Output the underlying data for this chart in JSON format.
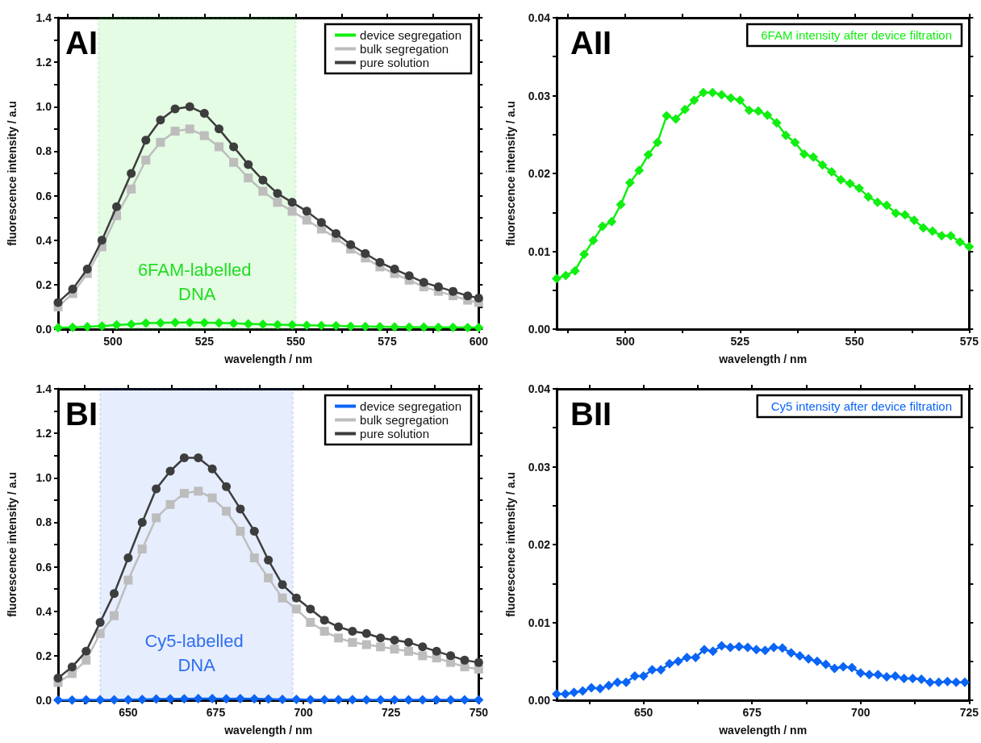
{
  "chart_data": [
    {
      "type": "line",
      "title": "AI",
      "xlabel": "wavelength / nm",
      "ylabel": "fluorescence intensity / a.u",
      "grid": false,
      "legend": "top right",
      "xlim": [
        485,
        600
      ],
      "xticks": [
        {
          "value": 487.5,
          "label": null
        },
        500,
        {
          "value": 512.5,
          "label": null
        },
        525,
        {
          "value": 537.5,
          "label": null
        },
        550,
        {
          "value": 562.5,
          "label": null
        },
        575,
        {
          "value": 587.5,
          "label": null
        },
        600
      ],
      "ylim": [
        0,
        1.4
      ],
      "yticks": [
        {
          "value": 0,
          "label": "0.0"
        },
        {
          "value": 0.1,
          "label": null
        },
        0.2,
        {
          "value": 0.3,
          "label": null
        },
        0.4,
        {
          "value": 0.5,
          "label": null
        },
        0.6,
        {
          "value": 0.7,
          "label": null
        },
        0.8,
        {
          "value": 0.9,
          "label": null
        },
        {
          "value": 1,
          "label": "1.0"
        },
        {
          "value": 1.1,
          "label": null
        },
        1.2,
        {
          "value": 1.3,
          "label": null
        },
        1.4
      ],
      "bands": [
        {
          "axis": "x",
          "from": 496,
          "to": 550,
          "label": "6FAM-labelled DNA",
          "color": "#22dd22"
        }
      ],
      "series": [
        {
          "name": "device segregation",
          "color": "#11ee11",
          "marker": "diamond",
          "x": [
            485,
            489,
            493,
            497,
            501,
            505,
            509,
            513,
            517,
            521,
            525,
            529,
            533,
            537,
            541,
            545,
            549,
            553,
            557,
            561,
            565,
            569,
            573,
            577,
            581,
            585,
            589,
            593,
            597,
            600
          ],
          "values": [
            0.006,
            0.008,
            0.011,
            0.014,
            0.019,
            0.022,
            0.027,
            0.028,
            0.03,
            0.03,
            0.029,
            0.028,
            0.026,
            0.024,
            0.022,
            0.02,
            0.019,
            0.017,
            0.016,
            0.015,
            0.013,
            0.012,
            0.011,
            0.01,
            0.009,
            0.009,
            0.008,
            0.008,
            0.007,
            0.007
          ]
        },
        {
          "name": "bulk segregation",
          "color": "#bdbdbd",
          "marker": "square",
          "x": [
            485,
            489,
            493,
            497,
            501,
            505,
            509,
            513,
            517,
            521,
            525,
            529,
            533,
            537,
            541,
            545,
            549,
            553,
            557,
            561,
            565,
            569,
            573,
            577,
            581,
            585,
            589,
            593,
            597,
            600
          ],
          "values": [
            0.1,
            0.16,
            0.25,
            0.37,
            0.51,
            0.63,
            0.76,
            0.84,
            0.89,
            0.9,
            0.87,
            0.82,
            0.75,
            0.68,
            0.62,
            0.57,
            0.53,
            0.49,
            0.45,
            0.41,
            0.36,
            0.32,
            0.28,
            0.25,
            0.22,
            0.19,
            0.17,
            0.15,
            0.13,
            0.12
          ]
        },
        {
          "name": "pure solution",
          "color": "#3d3d3d",
          "marker": "circle",
          "x": [
            485,
            489,
            493,
            497,
            501,
            505,
            509,
            513,
            517,
            521,
            525,
            529,
            533,
            537,
            541,
            545,
            549,
            553,
            557,
            561,
            565,
            569,
            573,
            577,
            581,
            585,
            589,
            593,
            597,
            600
          ],
          "values": [
            0.12,
            0.18,
            0.27,
            0.4,
            0.55,
            0.7,
            0.85,
            0.94,
            0.99,
            1.0,
            0.97,
            0.9,
            0.82,
            0.74,
            0.67,
            0.61,
            0.57,
            0.53,
            0.48,
            0.43,
            0.38,
            0.34,
            0.3,
            0.27,
            0.24,
            0.21,
            0.19,
            0.17,
            0.15,
            0.14
          ]
        }
      ]
    },
    {
      "type": "line",
      "title": "AII",
      "xlabel": "wavelength / nm",
      "ylabel": "fluorescence intensity / a.u",
      "grid": false,
      "legend": "top right",
      "xlim": [
        485,
        575
      ],
      "xticks": [
        {
          "value": 487.5,
          "label": null
        },
        500,
        {
          "value": 512.5,
          "label": null
        },
        525,
        {
          "value": 537.5,
          "label": null
        },
        550,
        {
          "value": 562.5,
          "label": null
        },
        575
      ],
      "ylim": [
        0,
        0.04
      ],
      "yticks": [
        {
          "value": 0,
          "label": "0.00"
        },
        {
          "value": 0.005,
          "label": null
        },
        0.01,
        {
          "value": 0.015,
          "label": null
        },
        0.02,
        {
          "value": 0.025,
          "label": null
        },
        0.03,
        {
          "value": 0.035,
          "label": null
        },
        0.04
      ],
      "series": [
        {
          "name": "6FAM intensity after device filtration",
          "color": "#11ee11",
          "marker": "diamond",
          "x": [
            485,
            487,
            489,
            491,
            493,
            495,
            497,
            499,
            501,
            503,
            505,
            507,
            509,
            511,
            513,
            515,
            517,
            519,
            521,
            523,
            525,
            527,
            529,
            531,
            533,
            535,
            537,
            539,
            541,
            543,
            545,
            547,
            549,
            551,
            553,
            555,
            557,
            559,
            561,
            563,
            565,
            567,
            569,
            571,
            573,
            575
          ],
          "values": [
            0.0065,
            0.0069,
            0.0075,
            0.0096,
            0.0114,
            0.0132,
            0.0138,
            0.016,
            0.0188,
            0.0204,
            0.0224,
            0.024,
            0.0274,
            0.027,
            0.0282,
            0.0294,
            0.0304,
            0.0304,
            0.0301,
            0.0297,
            0.0294,
            0.0281,
            0.028,
            0.0275,
            0.0265,
            0.0249,
            0.024,
            0.0225,
            0.0221,
            0.0211,
            0.0202,
            0.0192,
            0.0187,
            0.0181,
            0.017,
            0.0163,
            0.0159,
            0.0149,
            0.0147,
            0.014,
            0.013,
            0.0126,
            0.012,
            0.012,
            0.0112,
            0.0106
          ]
        }
      ]
    },
    {
      "type": "line",
      "title": "BI",
      "xlabel": "wavelength / nm",
      "ylabel": "fluorescence intensity / a.u",
      "grid": false,
      "legend": "top right",
      "xlim": [
        630,
        750
      ],
      "xticks": [
        {
          "value": 637.5,
          "label": null
        },
        650,
        {
          "value": 662.5,
          "label": null
        },
        675,
        {
          "value": 687.5,
          "label": null
        },
        700,
        {
          "value": 712.5,
          "label": null
        },
        725,
        {
          "value": 737.5,
          "label": null
        },
        750
      ],
      "ylim": [
        0,
        1.4
      ],
      "yticks": [
        {
          "value": 0,
          "label": "0.0"
        },
        {
          "value": 0.1,
          "label": null
        },
        0.2,
        {
          "value": 0.3,
          "label": null
        },
        0.4,
        {
          "value": 0.5,
          "label": null
        },
        0.6,
        {
          "value": 0.7,
          "label": null
        },
        0.8,
        {
          "value": 0.9,
          "label": null
        },
        {
          "value": 1,
          "label": "1.0"
        },
        {
          "value": 1.1,
          "label": null
        },
        1.2,
        {
          "value": 1.3,
          "label": null
        },
        1.4
      ],
      "bands": [
        {
          "axis": "x",
          "from": 642,
          "to": 697,
          "label": "Cy5-labelled DNA",
          "color": "#2f6ff0"
        }
      ],
      "series": [
        {
          "name": "device segregation",
          "color": "#0a64f5",
          "marker": "diamond",
          "x": [
            630,
            634,
            638,
            642,
            646,
            650,
            654,
            658,
            662,
            666,
            670,
            674,
            678,
            682,
            686,
            690,
            694,
            698,
            702,
            706,
            710,
            714,
            718,
            722,
            726,
            730,
            734,
            738,
            742,
            746,
            750
          ],
          "values": [
            0.001,
            0.001,
            0.002,
            0.002,
            0.002,
            0.003,
            0.004,
            0.005,
            0.006,
            0.006,
            0.007,
            0.007,
            0.006,
            0.007,
            0.006,
            0.005,
            0.004,
            0.004,
            0.003,
            0.003,
            0.003,
            0.003,
            0.002,
            0.002,
            0.002,
            0.002,
            0.002,
            0.002,
            0.002,
            0.002,
            0.002
          ]
        },
        {
          "name": "bulk segregation",
          "color": "#bdbdbd",
          "marker": "square",
          "x": [
            630,
            634,
            638,
            642,
            646,
            650,
            654,
            658,
            662,
            666,
            670,
            674,
            678,
            682,
            686,
            690,
            694,
            698,
            702,
            706,
            710,
            714,
            718,
            722,
            726,
            730,
            734,
            738,
            742,
            746,
            750
          ],
          "values": [
            0.08,
            0.12,
            0.18,
            0.3,
            0.38,
            0.54,
            0.68,
            0.82,
            0.88,
            0.93,
            0.94,
            0.91,
            0.85,
            0.76,
            0.64,
            0.55,
            0.46,
            0.41,
            0.35,
            0.31,
            0.28,
            0.26,
            0.25,
            0.24,
            0.23,
            0.22,
            0.2,
            0.19,
            0.17,
            0.15,
            0.14
          ]
        },
        {
          "name": "pure solution",
          "color": "#3d3d3d",
          "marker": "circle",
          "x": [
            630,
            634,
            638,
            642,
            646,
            650,
            654,
            658,
            662,
            666,
            670,
            674,
            678,
            682,
            686,
            690,
            694,
            698,
            702,
            706,
            710,
            714,
            718,
            722,
            726,
            730,
            734,
            738,
            742,
            746,
            750
          ],
          "values": [
            0.1,
            0.15,
            0.22,
            0.35,
            0.48,
            0.64,
            0.8,
            0.95,
            1.03,
            1.09,
            1.09,
            1.04,
            0.96,
            0.86,
            0.76,
            0.63,
            0.52,
            0.46,
            0.41,
            0.36,
            0.33,
            0.31,
            0.3,
            0.28,
            0.27,
            0.26,
            0.24,
            0.22,
            0.2,
            0.18,
            0.17
          ]
        }
      ]
    },
    {
      "type": "line",
      "title": "BII",
      "xlabel": "wavelength / nm",
      "ylabel": "fluorescence intensity / a.u",
      "grid": false,
      "legend": "top right",
      "xlim": [
        630,
        725
      ],
      "xticks": [
        {
          "value": 637.5,
          "label": null
        },
        650,
        {
          "value": 662.5,
          "label": null
        },
        675,
        {
          "value": 687.5,
          "label": null
        },
        700,
        {
          "value": 712.5,
          "label": null
        },
        725
      ],
      "ylim": [
        0,
        0.04
      ],
      "yticks": [
        {
          "value": 0,
          "label": "0.00"
        },
        {
          "value": 0.005,
          "label": null
        },
        0.01,
        {
          "value": 0.015,
          "label": null
        },
        0.02,
        {
          "value": 0.025,
          "label": null
        },
        0.03,
        {
          "value": 0.035,
          "label": null
        },
        0.04
      ],
      "series": [
        {
          "name": "Cy5 intensity after device filtration",
          "color": "#0a64f5",
          "marker": "diamond",
          "x": [
            630,
            632,
            634,
            636,
            638,
            640,
            642,
            644,
            646,
            648,
            650,
            652,
            654,
            656,
            658,
            660,
            662,
            664,
            666,
            668,
            670,
            672,
            674,
            676,
            678,
            680,
            682,
            684,
            686,
            688,
            690,
            692,
            694,
            696,
            698,
            700,
            702,
            704,
            706,
            708,
            710,
            712,
            714,
            716,
            718,
            720,
            722,
            724
          ],
          "values": [
            0.0008,
            0.0008,
            0.001,
            0.0012,
            0.0016,
            0.0015,
            0.0019,
            0.0023,
            0.0023,
            0.0031,
            0.0031,
            0.0039,
            0.0039,
            0.0047,
            0.005,
            0.0055,
            0.0055,
            0.0065,
            0.0063,
            0.007,
            0.0068,
            0.0069,
            0.0068,
            0.0065,
            0.0064,
            0.0068,
            0.0067,
            0.0061,
            0.0057,
            0.0053,
            0.005,
            0.0046,
            0.0041,
            0.0043,
            0.0042,
            0.0035,
            0.0033,
            0.0033,
            0.003,
            0.0031,
            0.0028,
            0.0028,
            0.0027,
            0.0023,
            0.0023,
            0.0024,
            0.0023,
            0.0023
          ]
        }
      ]
    }
  ]
}
